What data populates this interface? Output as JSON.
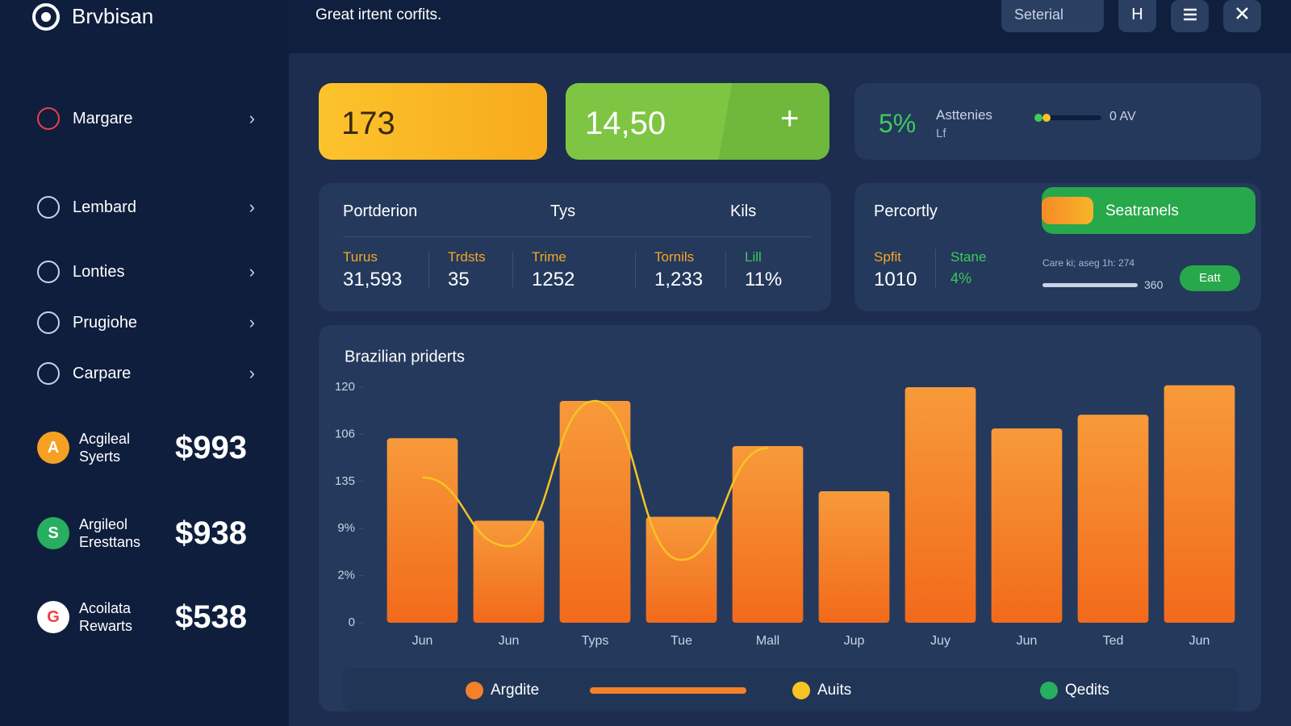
{
  "brand": "Brvbisan",
  "header": {
    "title": "Great irtent corfits.",
    "search": "Seterial",
    "button": "H"
  },
  "nav": [
    "Margare",
    "Lembard",
    "Lonties",
    "Prugiohe",
    "Carpare"
  ],
  "accounts": [
    {
      "icon": "A",
      "name": "Acgileal Syerts",
      "amount": "$993"
    },
    {
      "icon": "S",
      "name": "Argileol Eresttans",
      "amount": "$938"
    },
    {
      "icon": "G",
      "name": "Acoilata Rewarts",
      "amount": "$538"
    }
  ],
  "kpis": {
    "first": "173",
    "second": "14,50",
    "third": {
      "value": "5%",
      "label": "Asttenies",
      "sublabel": "Lf",
      "slider_label": "0 AV"
    }
  },
  "summary": {
    "headers": [
      "Portderion",
      "Tys",
      "Kils"
    ],
    "stats": [
      {
        "label": "Turus",
        "value": "31,593"
      },
      {
        "label": "Trdsts",
        "value": "35"
      },
      {
        "label": "Trime",
        "value": "1252"
      },
      {
        "label": "Tornils",
        "value": "1,233"
      },
      {
        "label": "Lill",
        "value": "11%"
      }
    ]
  },
  "segments": {
    "title": "Percortly",
    "button": "Seatranels",
    "stats": [
      {
        "label": "Spfit",
        "value": "1010"
      },
      {
        "label": "Stane",
        "value": "4%"
      }
    ],
    "note": "Care ki; aseg 1h: 274",
    "note_value": "360",
    "action": "Eatt"
  },
  "chart_data": {
    "type": "bar",
    "title": "Brazilian priderts",
    "categories": [
      "Jun",
      "Jun",
      "Typs",
      "Tue",
      "Mall",
      "Jup",
      "Juy",
      "Jun",
      "Ted",
      "Jun"
    ],
    "series": [
      {
        "name": "Argdite",
        "color": "#f5802a",
        "values": [
          94,
          52,
          113,
          54,
          90,
          67,
          120,
          99,
          106,
          121
        ]
      },
      {
        "name": "Auits",
        "color": "#f7c325",
        "type": "line",
        "values": [
          74,
          39,
          113,
          32,
          89,
          null,
          null,
          null,
          null,
          null
        ]
      },
      {
        "name": "Qedits",
        "color": "#27ae60",
        "values": [
          null,
          null,
          null,
          null,
          null,
          null,
          null,
          null,
          null,
          null
        ]
      }
    ],
    "ylim": [
      0,
      120
    ],
    "yticks": [
      0,
      {
        "value": 24,
        "label": "2%"
      },
      {
        "value": 48,
        "label": "9%"
      },
      {
        "value": 72,
        "label": "135"
      },
      {
        "value": 96,
        "label": "106"
      },
      120
    ]
  }
}
